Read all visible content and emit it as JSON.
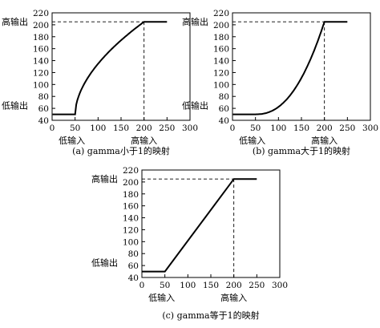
{
  "chart_data": [
    {
      "type": "line",
      "caption": "(a) gamma小于1的映射",
      "curve": "gamma-lt-1",
      "x": [
        0,
        50,
        60,
        80,
        100,
        120,
        140,
        160,
        180,
        200,
        250
      ],
      "y": [
        50,
        50,
        85,
        113,
        134,
        151,
        166,
        180,
        193,
        205,
        205
      ],
      "xlim": [
        0,
        300
      ],
      "ylim": [
        40,
        220
      ],
      "xticks": [
        0,
        50,
        100,
        150,
        200,
        250,
        300
      ],
      "yticks": [
        40,
        60,
        80,
        100,
        120,
        140,
        160,
        180,
        200,
        220
      ],
      "low_output_label": "低输出",
      "high_output_label": "高输出",
      "low_input_label": "低输入",
      "high_input_label": "高输入",
      "low_in": 50,
      "high_in": 200,
      "low_out": 50,
      "high_out": 205
    },
    {
      "type": "line",
      "caption": "(b) gamma大于1的映射",
      "curve": "gamma-gt-1",
      "x": [
        0,
        50,
        60,
        80,
        100,
        120,
        140,
        160,
        180,
        200,
        250
      ],
      "y": [
        50,
        50,
        51,
        56,
        64,
        76,
        93,
        117,
        152,
        205,
        205
      ],
      "xlim": [
        0,
        300
      ],
      "ylim": [
        40,
        220
      ],
      "xticks": [
        0,
        50,
        100,
        150,
        200,
        250,
        300
      ],
      "yticks": [
        40,
        60,
        80,
        100,
        120,
        140,
        160,
        180,
        200,
        220
      ],
      "low_output_label": "低输出",
      "high_output_label": "高输出",
      "low_input_label": "低输入",
      "high_input_label": "高输入",
      "low_in": 50,
      "high_in": 200,
      "low_out": 50,
      "high_out": 205
    },
    {
      "type": "line",
      "caption": "(c) gamma等于1的映射",
      "curve": "gamma-eq-1",
      "x": [
        0,
        50,
        200,
        250
      ],
      "y": [
        50,
        50,
        205,
        205
      ],
      "xlim": [
        0,
        300
      ],
      "ylim": [
        40,
        220
      ],
      "xticks": [
        0,
        50,
        100,
        150,
        200,
        250,
        300
      ],
      "yticks": [
        40,
        60,
        80,
        100,
        120,
        140,
        160,
        180,
        200,
        220
      ],
      "low_output_label": "低输出",
      "high_output_label": "高输出",
      "low_input_label": "低输入",
      "high_input_label": "高输入",
      "low_in": 50,
      "high_in": 200,
      "low_out": 50,
      "high_out": 205
    }
  ]
}
